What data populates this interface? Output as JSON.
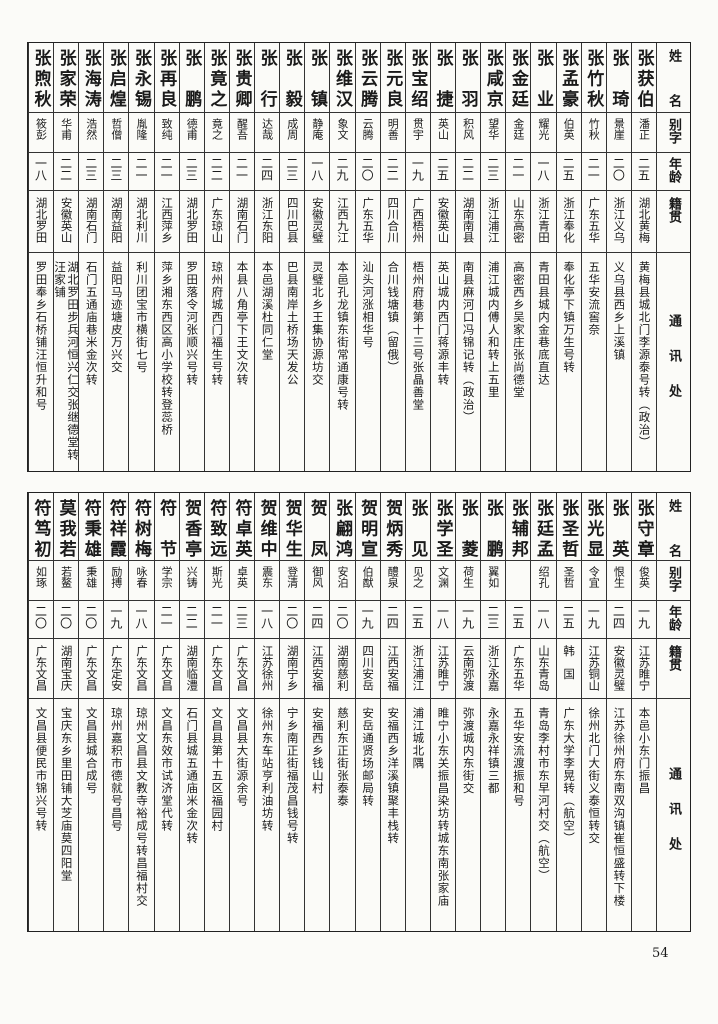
{
  "headers": {
    "name": "姓名",
    "alias": "别字",
    "age": "年龄",
    "origin": "籍贯",
    "address": "通讯处"
  },
  "tables": [
    {
      "entries": [
        {
          "name": "张获伯",
          "alias": "潘正",
          "age": "二五",
          "origin": "湖北黄梅",
          "address": "黄梅县城北门李源泰号转（政治）"
        },
        {
          "name": "张琦",
          "alias": "景崖",
          "age": "二〇",
          "origin": "浙江义乌",
          "address": "义乌县西乡上溪镇"
        },
        {
          "name": "张竹秋",
          "alias": "竹秋",
          "age": "二一",
          "origin": "广东五华",
          "address": "五华安流窖奈"
        },
        {
          "name": "张孟豪",
          "alias": "伯英",
          "age": "二五",
          "origin": "浙江奉化",
          "address": "奉化亭下镇万生号转"
        },
        {
          "name": "张业",
          "alias": "耀光",
          "age": "一八",
          "origin": "浙江青田",
          "address": "青田县城内金巷底直达"
        },
        {
          "name": "张金廷",
          "alias": "金廷",
          "age": "二一",
          "origin": "山东高密",
          "address": "高密西乡吴家庄张尚德堂"
        },
        {
          "name": "张咸京",
          "alias": "望华",
          "age": "二三",
          "origin": "浙江浦江",
          "address": "浦江城内傅人和转上五里"
        },
        {
          "name": "张羽",
          "alias": "积风",
          "age": "二二",
          "origin": "湖南南县",
          "address": "南县麻河口冯锦记转（政治）"
        },
        {
          "name": "张捷",
          "alias": "英山",
          "age": "二五",
          "origin": "安徽英山",
          "address": "英山城内西门蒋源丰转"
        },
        {
          "name": "张宝绍",
          "alias": "贯宇",
          "age": "一九",
          "origin": "广西梧州",
          "address": "梧州府巷第十三号张晶善堂"
        },
        {
          "name": "张元良",
          "alias": "明善",
          "age": "二二",
          "origin": "四川合川",
          "address": "合川钱塘镇（留俄）"
        },
        {
          "name": "张云腾",
          "alias": "云腾",
          "age": "二〇",
          "origin": "广东五华",
          "address": "汕头河涨相华号"
        },
        {
          "name": "张维汉",
          "alias": "象文",
          "age": "二九",
          "origin": "江西九江",
          "address": "本邑孔龙镇东街常通康号转"
        },
        {
          "name": "张镇",
          "alias": "静庵",
          "age": "一八",
          "origin": "安徽灵璧",
          "address": "灵璧北乡王集协源坊交"
        },
        {
          "name": "张毅",
          "alias": "成周",
          "age": "二三",
          "origin": "四川巴县",
          "address": "巴县南岸土桥场天发公"
        },
        {
          "name": "张行",
          "alias": "达哉",
          "age": "二四",
          "origin": "浙江东阳",
          "address": "本邑湖溪杜同仁堂"
        },
        {
          "name": "张贵卿",
          "alias": "醒吾",
          "age": "二一",
          "origin": "湖南石门",
          "address": "本县八角亭下王文次转"
        },
        {
          "name": "张竟之",
          "alias": "竟之",
          "age": "二二",
          "origin": "广东琼山",
          "address": "琼州府城西门福生号转"
        },
        {
          "name": "张鹏",
          "alias": "德甫",
          "age": "二三",
          "origin": "湖北罗田",
          "address": "罗田落令河张顺兴号转"
        },
        {
          "name": "张再良",
          "alias": "致纯",
          "age": "二一",
          "origin": "江西萍乡",
          "address": "萍乡湘东西区高小学校转登蕊桥"
        },
        {
          "name": "张永锡",
          "alias": "胤隆",
          "age": "二一",
          "origin": "湖北利川",
          "address": "利川团宝市横街七号"
        },
        {
          "name": "张启煌",
          "alias": "哲僧",
          "age": "二三",
          "origin": "湖南益阳",
          "address": "益阳马迹塘皮万兴交"
        },
        {
          "name": "张海涛",
          "alias": "浩然",
          "age": "二三",
          "origin": "湖南石门",
          "address": "石门五通庙巷米金次转"
        },
        {
          "name": "张家荣",
          "alias": "华甫",
          "age": "二二",
          "origin": "安徽英山",
          "address": "湖北罗田步兵河恒兴仁交张继德堂转汪家铺"
        },
        {
          "name": "张煦秋",
          "alias": "筱彭",
          "age": "一八",
          "origin": "湖北罗田",
          "address": "罗田奉乡石桥铺汪恒升和号"
        }
      ]
    },
    {
      "entries": [
        {
          "name": "张守章",
          "alias": "俊英",
          "age": "一九",
          "origin": "江苏睢宁",
          "address": "本邑小东门振昌"
        },
        {
          "name": "张英",
          "alias": "恨生",
          "age": "二四",
          "origin": "安徽灵璧",
          "address": "江苏徐州府东南双沟镇崔恒盛转下楼"
        },
        {
          "name": "张光显",
          "alias": "令宜",
          "age": "一九",
          "origin": "江苏铜山",
          "address": "徐州北门大街义泰恒转交"
        },
        {
          "name": "张圣哲",
          "alias": "圣哲",
          "age": "二五",
          "origin": "韩　国",
          "address": "广东大学李晃转（航空）"
        },
        {
          "name": "张廷孟",
          "alias": "绍孔",
          "age": "一八",
          "origin": "山东青岛",
          "address": "青岛李村市东早河村交（航空）"
        },
        {
          "name": "张辅邦",
          "alias": "",
          "age": "二五",
          "origin": "广东五华",
          "address": "五华安流渡振和号"
        },
        {
          "name": "张鹏",
          "alias": "翼如",
          "age": "二三",
          "origin": "浙江永嘉",
          "address": "永嘉永祥镇三都"
        },
        {
          "name": "张菱",
          "alias": "荷生",
          "age": "一九",
          "origin": "云南弥渡",
          "address": "弥渡城内东街交"
        },
        {
          "name": "张学圣",
          "alias": "文渊",
          "age": "一八",
          "origin": "江苏睢宁",
          "address": "睢宁小东关振昌染坊转城东南张家庙"
        },
        {
          "name": "张见",
          "alias": "见之",
          "age": "二五",
          "origin": "浙江浦江",
          "address": "浦江城北隅"
        },
        {
          "name": "贺炳秀",
          "alias": "醴泉",
          "age": "二四",
          "origin": "江西安福",
          "address": "安福西乡洋溪镇聚丰栈转"
        },
        {
          "name": "贺明宣",
          "alias": "伯猷",
          "age": "一九",
          "origin": "四川安岳",
          "address": "安岳通贤场邮局转"
        },
        {
          "name": "张翩鸿",
          "alias": "安泊",
          "age": "二〇",
          "origin": "湖南慈利",
          "address": "慈利东正街张泰泰"
        },
        {
          "name": "贺凤",
          "alias": "御风",
          "age": "二四",
          "origin": "江西安福",
          "address": "安福西乡钱山村"
        },
        {
          "name": "贺华生",
          "alias": "登清",
          "age": "二〇",
          "origin": "湖南宁乡",
          "address": "宁乡南正街福茂昌钱号转"
        },
        {
          "name": "贺维中",
          "alias": "震东",
          "age": "一八",
          "origin": "江苏徐州",
          "address": "徐州东车站亨利油坊转"
        },
        {
          "name": "符卓英",
          "alias": "卓英",
          "age": "二三",
          "origin": "广东文昌",
          "address": "文昌县大街源余号"
        },
        {
          "name": "符致远",
          "alias": "斯光",
          "age": "二一",
          "origin": "广东文昌",
          "address": "文昌县第十五区福园村"
        },
        {
          "name": "贺香亭",
          "alias": "兴铸",
          "age": "二二",
          "origin": "湖南临澧",
          "address": "石门县城五通庙米金次转"
        },
        {
          "name": "符节",
          "alias": "学宗",
          "age": "二一",
          "origin": "广东文昌",
          "address": "文昌东效市试济堂代转"
        },
        {
          "name": "符树梅",
          "alias": "咏春",
          "age": "一八",
          "origin": "广东文昌",
          "address": "琼州文昌县文教寺裕成号转昌福村交"
        },
        {
          "name": "符祥霞",
          "alias": "励搏",
          "age": "一九",
          "origin": "广东定安",
          "address": "琼州嘉积市德就号昌号"
        },
        {
          "name": "符秉雄",
          "alias": "秉雄",
          "age": "二〇",
          "origin": "广东文昌",
          "address": "文昌县城合成号"
        },
        {
          "name": "莫我若",
          "alias": "若鳌",
          "age": "二〇",
          "origin": "湖南宝庆",
          "address": "宝庆东乡里田铺大芝庙莫四阳堂"
        },
        {
          "name": "符笃初",
          "alias": "如琢",
          "age": "二〇",
          "origin": "广东文昌",
          "address": "文昌县便民市锦兴号转"
        }
      ]
    }
  ],
  "page_number": "54"
}
